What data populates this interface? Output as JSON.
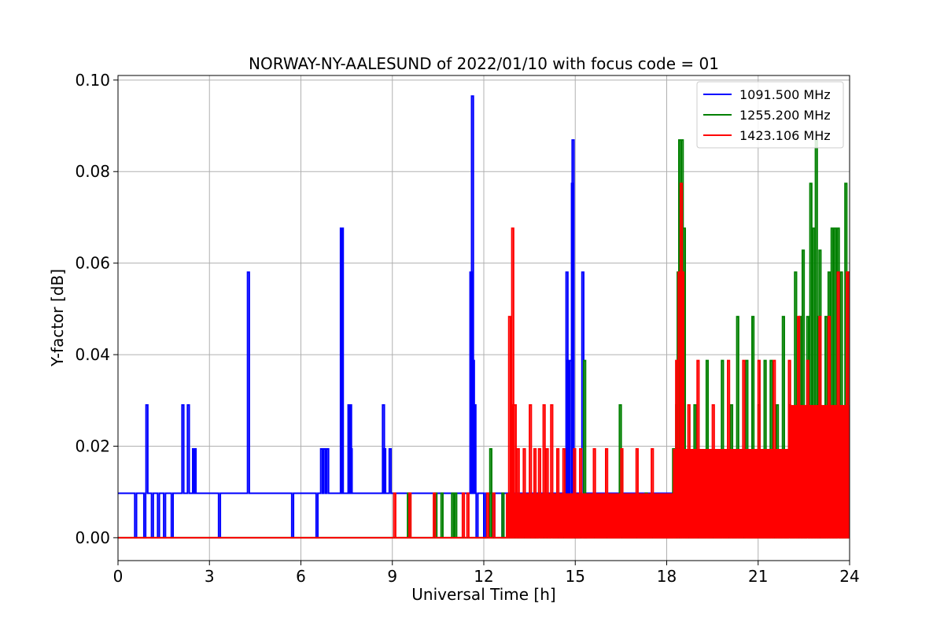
{
  "chart_data": {
    "type": "line",
    "title": "NORWAY-NY-AALESUND of 2022/01/10 with focus code = 01",
    "xlabel": "Universal Time [h]",
    "ylabel": "Y-factor [dB]",
    "xlim": [
      0,
      24
    ],
    "ylim": [
      -0.005,
      0.101
    ],
    "x_ticks": [
      0,
      3,
      6,
      9,
      12,
      15,
      18,
      21,
      24
    ],
    "y_ticks": [
      0.0,
      0.02,
      0.04,
      0.06,
      0.08,
      0.1
    ],
    "y_tick_labels": [
      "0.00",
      "0.02",
      "0.04",
      "0.06",
      "0.08",
      "0.10"
    ],
    "grid": true,
    "legend_position": "top-right",
    "series": [
      {
        "name": "1091.500 MHz",
        "color": "#0000ff",
        "baseline": 0.0097,
        "events": [
          [
            0.55,
            0.0
          ],
          [
            0.85,
            0.0
          ],
          [
            0.92,
            0.029
          ],
          [
            1.1,
            0.0
          ],
          [
            1.3,
            0.0
          ],
          [
            1.5,
            0.0
          ],
          [
            1.75,
            0.0
          ],
          [
            2.1,
            0.029
          ],
          [
            2.28,
            0.029
          ],
          [
            2.45,
            0.0194
          ],
          [
            2.5,
            0.0194
          ],
          [
            3.3,
            0.0
          ],
          [
            4.25,
            0.058
          ],
          [
            5.7,
            0.0
          ],
          [
            6.5,
            0.0
          ],
          [
            6.65,
            0.0194
          ],
          [
            6.75,
            0.0194
          ],
          [
            6.85,
            0.0194
          ],
          [
            7.3,
            0.0676
          ],
          [
            7.33,
            0.0676
          ],
          [
            7.55,
            0.029
          ],
          [
            7.6,
            0.029
          ],
          [
            7.62,
            0.0194
          ],
          [
            8.68,
            0.029
          ],
          [
            8.72,
            0.0194
          ],
          [
            8.9,
            0.0194
          ],
          [
            11.55,
            0.058
          ],
          [
            11.6,
            0.0965
          ],
          [
            11.63,
            0.0387
          ],
          [
            11.68,
            0.029
          ],
          [
            11.75,
            0.0
          ],
          [
            12.0,
            0.0
          ],
          [
            12.3,
            0.0
          ],
          [
            12.6,
            0.0
          ],
          [
            14.7,
            0.058
          ],
          [
            14.75,
            0.0387
          ],
          [
            14.82,
            0.0387
          ],
          [
            14.88,
            0.0774
          ],
          [
            14.9,
            0.0869
          ],
          [
            15.0,
            0.0
          ],
          [
            15.1,
            0.0
          ],
          [
            15.22,
            0.058
          ],
          [
            15.3,
            0.0
          ]
        ]
      },
      {
        "name": "1255.200 MHz",
        "color": "#008000",
        "baseline": 0.0,
        "events": [
          [
            9.5,
            0.0097
          ],
          [
            10.4,
            0.0097
          ],
          [
            10.6,
            0.0097
          ],
          [
            10.95,
            0.0097
          ],
          [
            11.05,
            0.0097
          ],
          [
            12.2,
            0.0194
          ],
          [
            12.6,
            0.0097
          ],
          [
            13.8,
            0.0097
          ],
          [
            14.2,
            0.0097
          ],
          [
            15.28,
            0.0387
          ],
          [
            16.45,
            0.029
          ],
          [
            17.3,
            0.0097
          ],
          [
            18.2,
            0.0194
          ],
          [
            18.3,
            0.029
          ],
          [
            18.35,
            0.058
          ],
          [
            18.4,
            0.0869
          ],
          [
            18.48,
            0.0869
          ],
          [
            18.55,
            0.0676
          ],
          [
            18.9,
            0.029
          ],
          [
            19.3,
            0.0387
          ],
          [
            19.8,
            0.0387
          ],
          [
            20.1,
            0.029
          ],
          [
            20.3,
            0.0483
          ],
          [
            20.6,
            0.0387
          ],
          [
            20.8,
            0.0483
          ],
          [
            21.0,
            0.029
          ],
          [
            21.2,
            0.0387
          ],
          [
            21.4,
            0.0387
          ],
          [
            21.6,
            0.029
          ],
          [
            21.8,
            0.0483
          ],
          [
            22.0,
            0.029
          ],
          [
            22.2,
            0.058
          ],
          [
            22.35,
            0.0483
          ],
          [
            22.45,
            0.0628
          ],
          [
            22.6,
            0.0483
          ],
          [
            22.7,
            0.0774
          ],
          [
            22.8,
            0.0676
          ],
          [
            22.88,
            0.0869
          ],
          [
            22.95,
            0.0483
          ],
          [
            23.0,
            0.0628
          ],
          [
            23.2,
            0.0483
          ],
          [
            23.3,
            0.058
          ],
          [
            23.4,
            0.0676
          ],
          [
            23.5,
            0.0676
          ],
          [
            23.6,
            0.0676
          ],
          [
            23.7,
            0.058
          ],
          [
            23.85,
            0.0774
          ],
          [
            23.95,
            0.058
          ]
        ]
      },
      {
        "name": "1423.106 MHz",
        "color": "#ff0000",
        "baseline": 0.0,
        "events": [
          [
            9.05,
            0.0097
          ],
          [
            9.55,
            0.0097
          ],
          [
            10.35,
            0.0097
          ],
          [
            11.3,
            0.0097
          ],
          [
            11.45,
            0.0097
          ],
          [
            12.1,
            0.0097
          ],
          [
            12.3,
            0.0097
          ],
          [
            12.82,
            0.0483
          ],
          [
            12.88,
            0.029
          ],
          [
            12.92,
            0.0676
          ],
          [
            13.0,
            0.029
          ],
          [
            13.1,
            0.0194
          ],
          [
            13.3,
            0.0194
          ],
          [
            13.5,
            0.029
          ],
          [
            13.65,
            0.0194
          ],
          [
            13.8,
            0.0194
          ],
          [
            13.95,
            0.029
          ],
          [
            14.05,
            0.0194
          ],
          [
            14.2,
            0.029
          ],
          [
            14.4,
            0.0194
          ],
          [
            14.6,
            0.0194
          ],
          [
            14.95,
            0.0194
          ],
          [
            15.15,
            0.0194
          ],
          [
            15.6,
            0.0194
          ],
          [
            16.0,
            0.0194
          ],
          [
            16.5,
            0.0194
          ],
          [
            17.0,
            0.0194
          ],
          [
            17.5,
            0.0194
          ],
          [
            18.3,
            0.0387
          ],
          [
            18.38,
            0.058
          ],
          [
            18.45,
            0.0774
          ],
          [
            18.5,
            0.058
          ],
          [
            18.7,
            0.029
          ],
          [
            19.0,
            0.0387
          ],
          [
            19.5,
            0.029
          ],
          [
            20.0,
            0.0387
          ],
          [
            20.5,
            0.0387
          ],
          [
            21.0,
            0.0387
          ],
          [
            21.5,
            0.0387
          ],
          [
            22.0,
            0.0387
          ],
          [
            22.3,
            0.0483
          ],
          [
            22.6,
            0.0387
          ],
          [
            23.0,
            0.0483
          ],
          [
            23.3,
            0.0483
          ],
          [
            23.6,
            0.058
          ],
          [
            23.9,
            0.058
          ]
        ]
      }
    ]
  }
}
